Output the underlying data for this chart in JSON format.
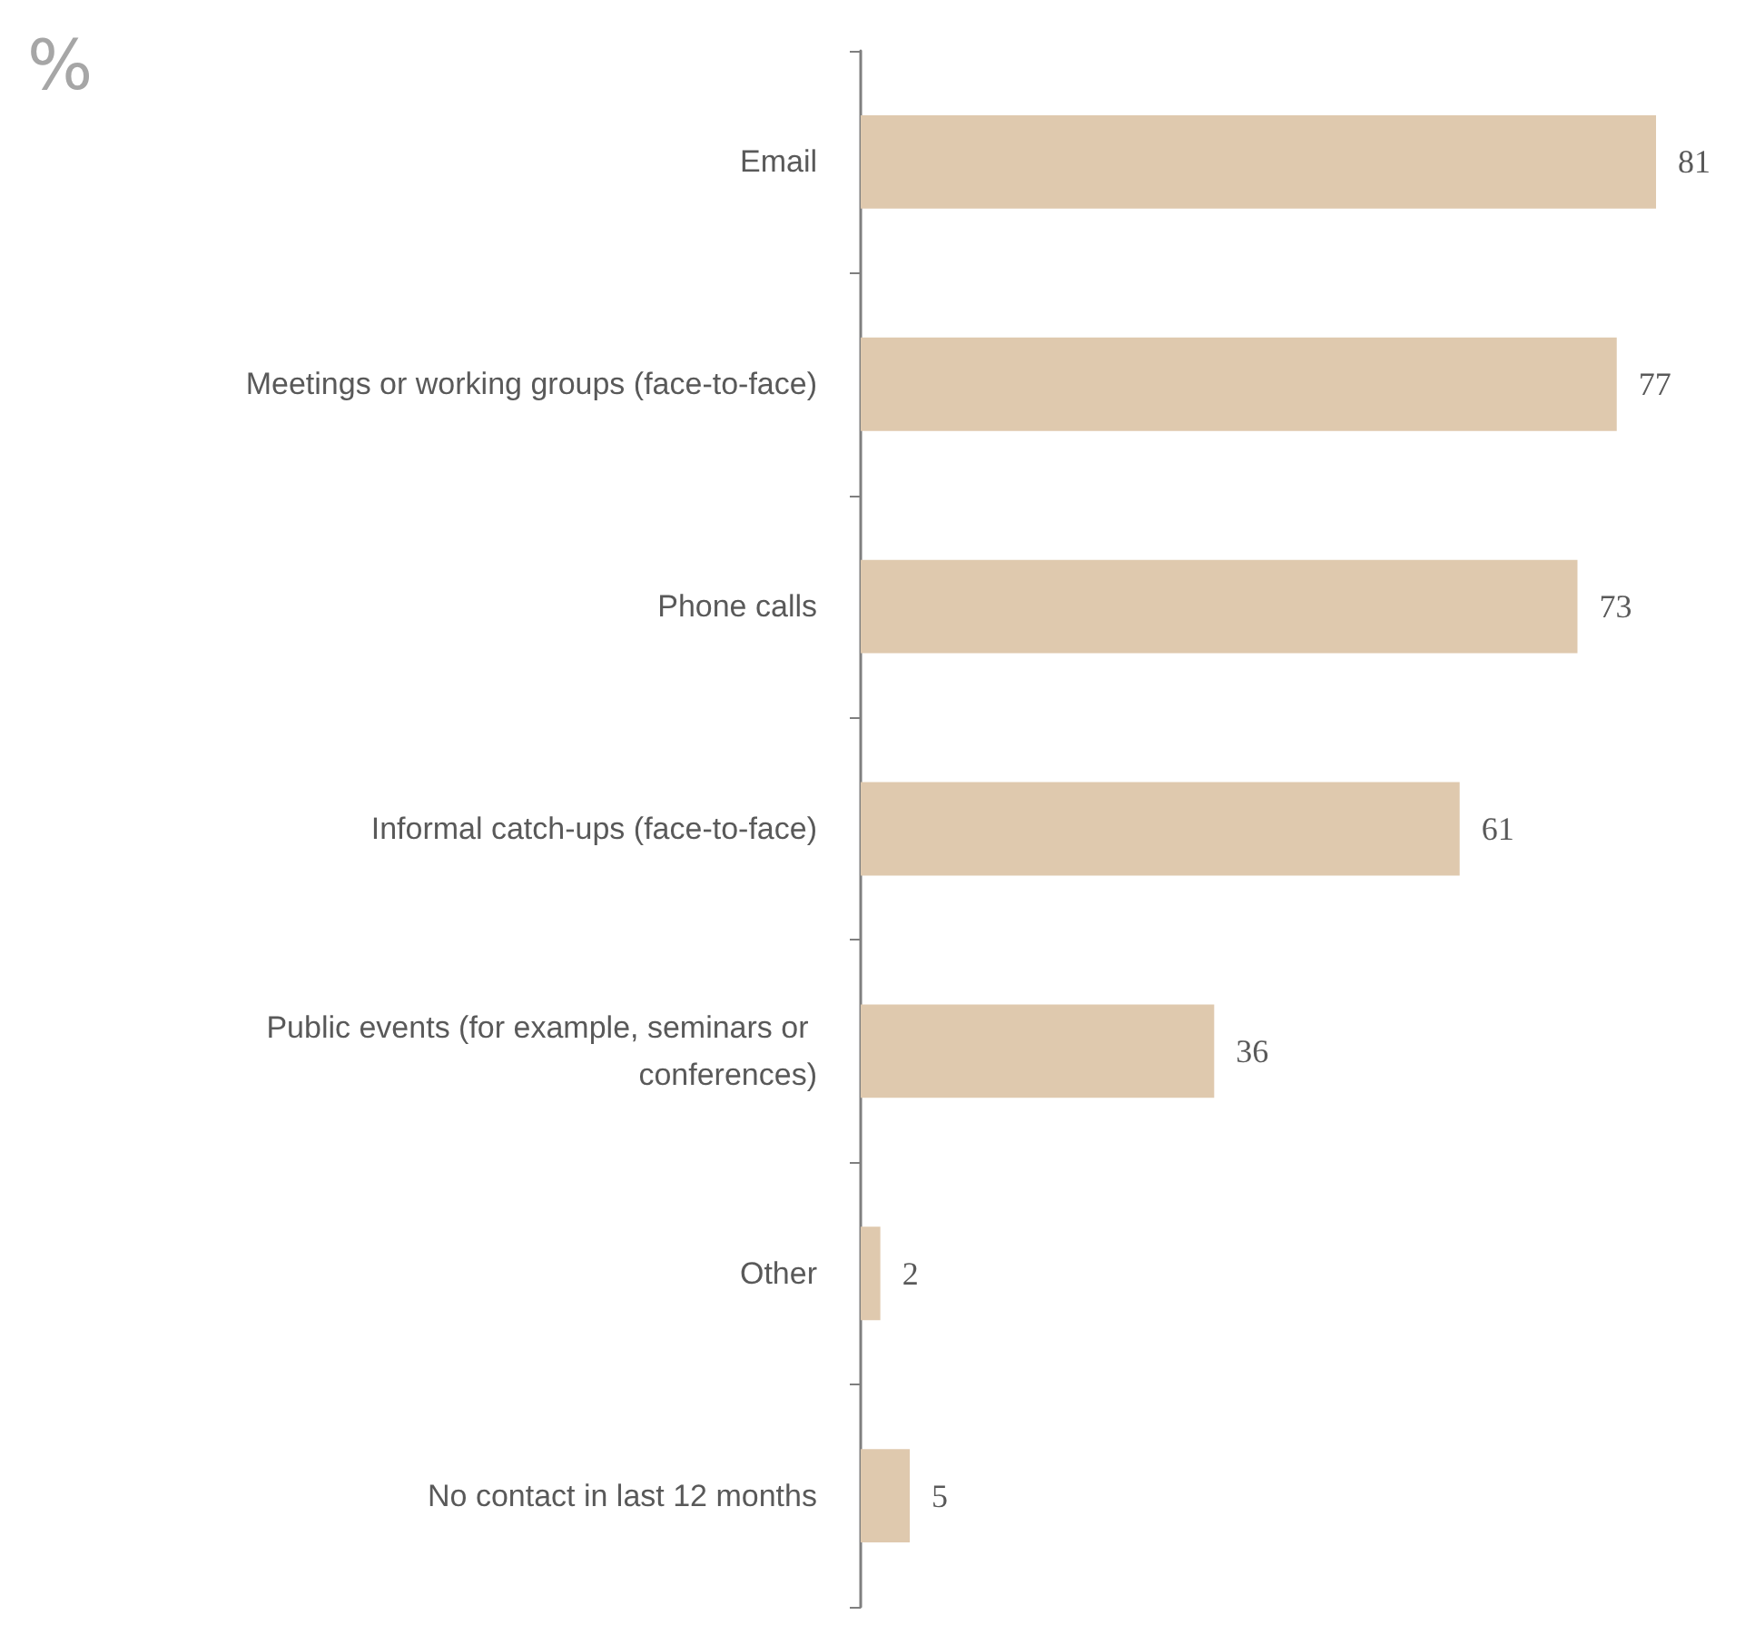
{
  "chart_data": {
    "type": "bar",
    "orientation": "horizontal",
    "title": "%",
    "categories": [
      "Email",
      "Meetings or working groups (face-to-face)",
      "Phone calls",
      "Informal catch-ups (face-to-face)",
      "Public events (for example, seminars or conferences)",
      "Other",
      "No contact in last 12 months"
    ],
    "values": [
      81,
      77,
      73,
      61,
      36,
      2,
      5
    ],
    "color": "#dfc9ae",
    "data_labels": true
  }
}
